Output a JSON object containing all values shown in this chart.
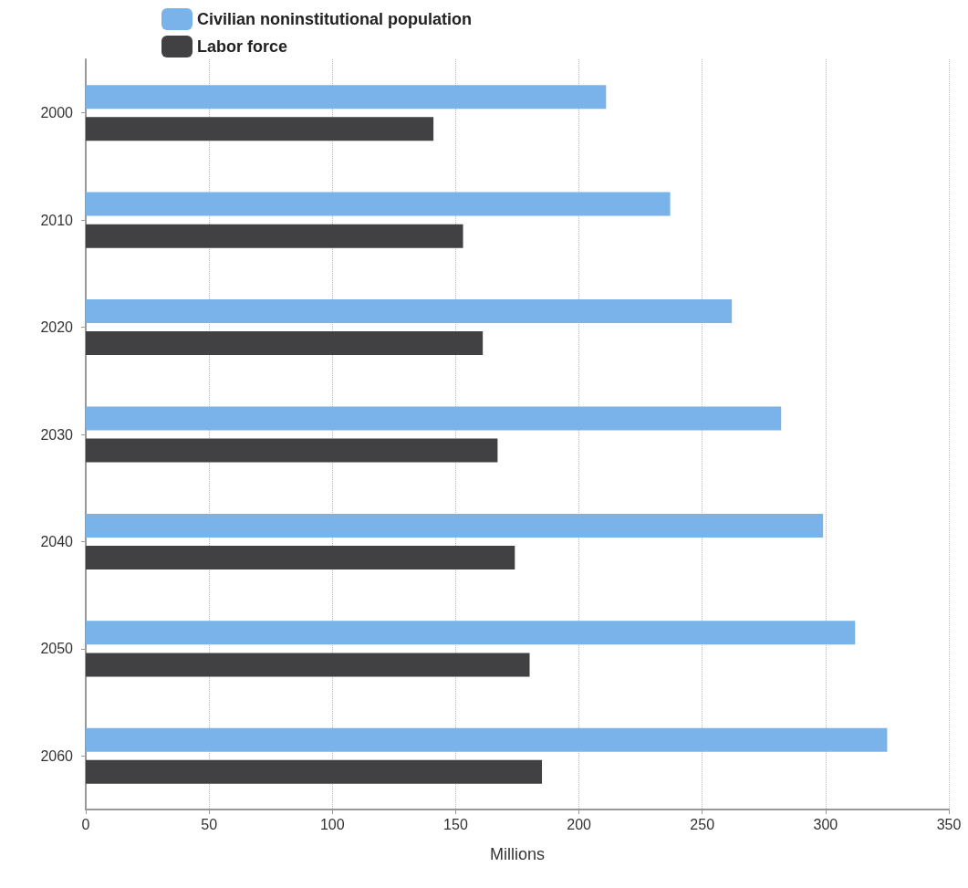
{
  "chart_data": {
    "type": "bar",
    "orientation": "horizontal",
    "xlabel": "Millions",
    "categories": [
      "2000",
      "2010",
      "2020",
      "2030",
      "2040",
      "2050",
      "2060"
    ],
    "series": [
      {
        "name": "Civilian noninstitutional population",
        "color": "#7ab3ea",
        "values": [
          211,
          237,
          262,
          282,
          299,
          312,
          325
        ]
      },
      {
        "name": "Labor force",
        "color": "#414144",
        "values": [
          141,
          153,
          161,
          167,
          174,
          180,
          185
        ]
      }
    ],
    "xlim": [
      0,
      350
    ],
    "xticks": [
      0,
      50,
      100,
      150,
      200,
      250,
      300,
      350
    ],
    "grid": "x",
    "legend": "top left"
  }
}
